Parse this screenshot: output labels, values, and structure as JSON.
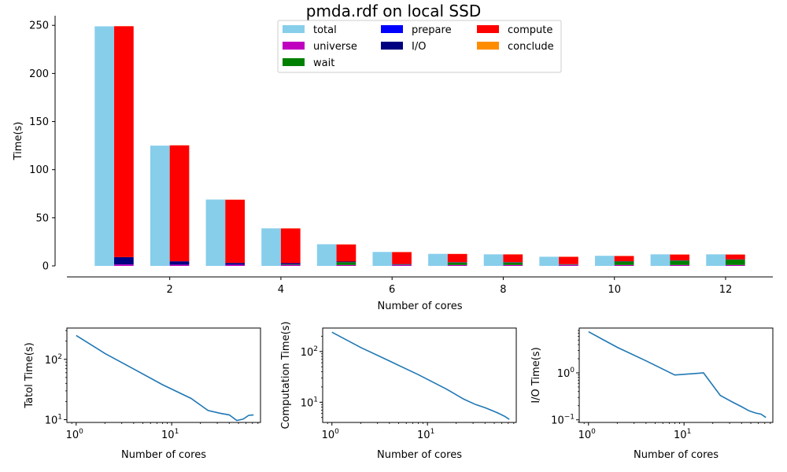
{
  "title": "pmda.rdf on local SSD",
  "chart_data": [
    {
      "type": "bar",
      "xlabel": "Number of cores",
      "ylabel": "Time(s)",
      "xlim": [
        0.15,
        12.85
      ],
      "ylim": [
        0,
        260
      ],
      "xticks": [
        2,
        4,
        6,
        8,
        10,
        12
      ],
      "yticks": [
        0,
        50,
        100,
        150,
        200,
        250
      ],
      "categories": [
        1,
        2,
        3,
        4,
        5,
        6,
        7,
        8,
        9,
        10,
        11,
        12
      ],
      "legend": {
        "position": "top-center",
        "entries": [
          {
            "name": "total",
            "color": "#87ceeb"
          },
          {
            "name": "universe",
            "color": "#bf00bf"
          },
          {
            "name": "wait",
            "color": "#008000"
          },
          {
            "name": "prepare",
            "color": "#0000ff"
          },
          {
            "name": "I/O",
            "color": "#000080"
          },
          {
            "name": "compute",
            "color": "#ff0000"
          },
          {
            "name": "conclude",
            "color": "#ff8c00"
          }
        ]
      },
      "series": [
        {
          "name": "total",
          "color": "#87ceeb",
          "values": [
            249,
            125,
            69,
            39,
            22.5,
            14.5,
            12.5,
            12,
            9.5,
            10.5,
            12,
            12
          ]
        },
        {
          "name": "universe",
          "color": "#bf00bf",
          "values": [
            1.5,
            1.2,
            1.2,
            1.1,
            1.0,
            1.0,
            1.0,
            1.0,
            1.0,
            1.0,
            1.0,
            1.0
          ]
        },
        {
          "name": "wait",
          "color": "#008000",
          "values": [
            0,
            0,
            0,
            0.5,
            2.8,
            0.3,
            2.5,
            2.5,
            0.4,
            3.5,
            4.5,
            5.5
          ]
        },
        {
          "name": "prepare",
          "color": "#0000ff",
          "values": [
            0.1,
            0.1,
            0.1,
            0.1,
            0.1,
            0.1,
            0.1,
            0.1,
            0.1,
            0.1,
            0.1,
            0.1
          ]
        },
        {
          "name": "I/O",
          "color": "#000080",
          "values": [
            7.5,
            3.5,
            1.8,
            1.2,
            0.6,
            0.5,
            0.3,
            0.3,
            0.3,
            0.25,
            0.2,
            0.2
          ]
        },
        {
          "name": "compute",
          "color": "#ff0000",
          "values": [
            240,
            120.5,
            65.7,
            36.0,
            17.8,
            12.4,
            8.5,
            8.0,
            7.6,
            5.4,
            6.0,
            5.0
          ]
        },
        {
          "name": "conclude",
          "color": "#ff8c00",
          "values": [
            0.1,
            0.1,
            0.1,
            0.1,
            0.1,
            0.1,
            0.1,
            0.1,
            0.1,
            0.1,
            0.1,
            0.1
          ]
        }
      ]
    },
    {
      "type": "line",
      "xlabel": "Number of cores",
      "ylabel": "Tatol Time(s)",
      "xscale": "log",
      "yscale": "log",
      "xlim": [
        0.8,
        85
      ],
      "ylim": [
        9,
        330
      ],
      "xticks": [
        {
          "value": 1,
          "label": "10",
          "exp": "0"
        },
        {
          "value": 10,
          "label": "10",
          "exp": "1"
        }
      ],
      "yticks": [
        {
          "value": 10,
          "label": "10",
          "exp": "1"
        },
        {
          "value": 100,
          "label": "10",
          "exp": "2"
        }
      ],
      "color": "#1f77b4",
      "x": [
        1,
        2,
        4,
        8,
        16,
        24,
        32,
        40,
        48,
        56,
        64,
        72
      ],
      "y": [
        249,
        125,
        69,
        38,
        22.5,
        14.2,
        12.8,
        12,
        9.7,
        10.2,
        11.8,
        12
      ]
    },
    {
      "type": "line",
      "xlabel": "Number of cores",
      "ylabel": "Computation Time(s)",
      "xscale": "log",
      "yscale": "log",
      "xlim": [
        0.8,
        85
      ],
      "ylim": [
        4.0,
        290
      ],
      "xticks": [
        {
          "value": 1,
          "label": "10",
          "exp": "0"
        },
        {
          "value": 10,
          "label": "10",
          "exp": "1"
        }
      ],
      "yticks": [
        {
          "value": 10,
          "label": "10",
          "exp": "1"
        },
        {
          "value": 100,
          "label": "10",
          "exp": "2"
        }
      ],
      "color": "#1f77b4",
      "x": [
        1,
        2,
        4,
        8,
        16,
        24,
        32,
        40,
        48,
        56,
        64,
        72
      ],
      "y": [
        240,
        120,
        65,
        35,
        18,
        11.5,
        9,
        7.8,
        6.8,
        6,
        5.3,
        4.6
      ]
    },
    {
      "type": "line",
      "xlabel": "Number of cores",
      "ylabel": "I/O Time(s)",
      "xscale": "log",
      "yscale": "log",
      "xlim": [
        0.8,
        85
      ],
      "ylim": [
        0.088,
        9.0
      ],
      "xticks": [
        {
          "value": 1,
          "label": "10",
          "exp": "0"
        },
        {
          "value": 10,
          "label": "10",
          "exp": "1"
        }
      ],
      "yticks": [
        {
          "value": 0.1,
          "label": "10",
          "exp": "−1"
        },
        {
          "value": 1,
          "label": "10",
          "exp": "0"
        }
      ],
      "color": "#1f77b4",
      "x": [
        1,
        2,
        4,
        8,
        16,
        24,
        32,
        40,
        48,
        56,
        64,
        72
      ],
      "y": [
        7.5,
        3.5,
        1.8,
        0.9,
        1.0,
        0.33,
        0.24,
        0.19,
        0.155,
        0.14,
        0.132,
        0.112
      ]
    }
  ]
}
